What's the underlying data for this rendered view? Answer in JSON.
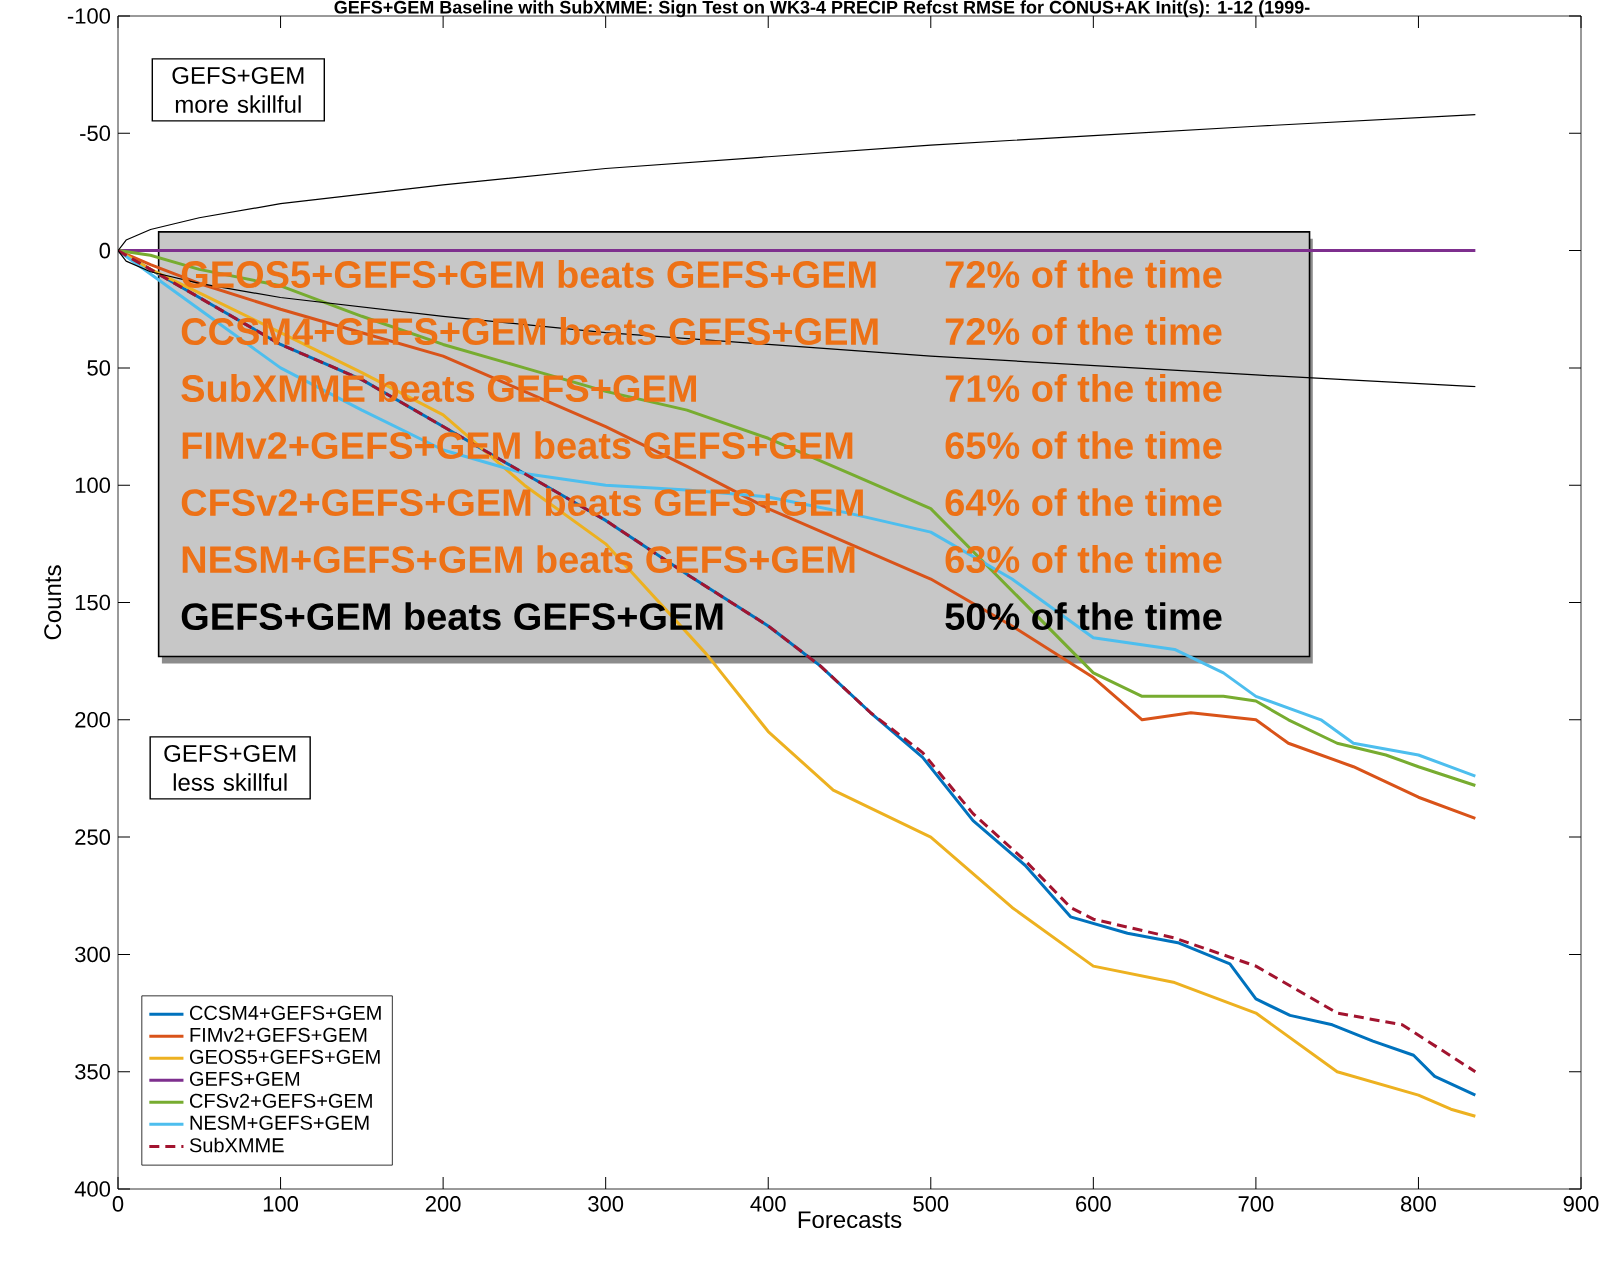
{
  "chart_data": {
    "type": "line",
    "title": "GEFS+GEM Baseline with SubXMME: Sign Test on WK3-4 PRECIP Refcst RMSE for CONUS+AK Init(s): 1-12 (1999-",
    "xlabel": "Forecasts",
    "ylabel": "Counts",
    "xlim": [
      0,
      900
    ],
    "xticks": [
      0,
      100,
      200,
      300,
      400,
      500,
      600,
      700,
      800,
      900
    ],
    "ylim": [
      400,
      -100
    ],
    "yticks": [
      -100,
      -50,
      0,
      50,
      100,
      150,
      200,
      250,
      300,
      350,
      400
    ],
    "grid": false,
    "legend": "bottom left",
    "series": [
      {
        "name": "CCSM4+GEFS+GEM",
        "color": "#0072bd",
        "x": [
          0,
          20,
          50,
          100,
          150,
          200,
          250,
          300,
          350,
          400,
          432,
          463,
          495,
          526,
          558,
          586,
          621,
          652,
          684,
          700,
          721,
          747,
          772,
          797,
          810,
          835
        ],
        "values": [
          0,
          8,
          20,
          40,
          55,
          75,
          95,
          115,
          138,
          160,
          177,
          197,
          216,
          243,
          262,
          284,
          291,
          295,
          304,
          319,
          326,
          330,
          337,
          343,
          352,
          360
        ]
      },
      {
        "name": "FIMv2+GEFS+GEM",
        "color": "#d95319",
        "x": [
          0,
          20,
          50,
          100,
          150,
          200,
          250,
          300,
          350,
          400,
          450,
          500,
          550,
          600,
          630,
          660,
          700,
          720,
          760,
          800,
          835
        ],
        "values": [
          0,
          6,
          14,
          25,
          35,
          45,
          60,
          75,
          92,
          110,
          125,
          140,
          160,
          182,
          200,
          197,
          200,
          210,
          220,
          233,
          242
        ]
      },
      {
        "name": "GEOS5+GEFS+GEM",
        "color": "#edb120",
        "x": [
          0,
          20,
          50,
          100,
          150,
          200,
          250,
          300,
          362,
          400,
          440,
          500,
          550,
          600,
          650,
          700,
          750,
          800,
          820,
          835
        ],
        "values": [
          0,
          8,
          18,
          35,
          52,
          70,
          100,
          125,
          172,
          205,
          230,
          250,
          280,
          305,
          312,
          325,
          350,
          360,
          366,
          369
        ]
      },
      {
        "name": "GEFS+GEM",
        "color": "#7e2f8e",
        "x": [
          0,
          835
        ],
        "values": [
          0,
          0
        ]
      },
      {
        "name": "CFSv2+GEFS+GEM",
        "color": "#77ac30",
        "x": [
          0,
          20,
          50,
          100,
          150,
          200,
          250,
          300,
          350,
          400,
          450,
          500,
          550,
          600,
          630,
          680,
          700,
          720,
          750,
          780,
          800,
          835
        ],
        "values": [
          0,
          2,
          8,
          15,
          28,
          40,
          50,
          60,
          68,
          80,
          95,
          110,
          145,
          180,
          190,
          190,
          192,
          200,
          210,
          215,
          220,
          228
        ]
      },
      {
        "name": "NESM+GEFS+GEM",
        "color": "#4dbeee",
        "x": [
          0,
          20,
          50,
          100,
          150,
          200,
          250,
          300,
          350,
          400,
          450,
          500,
          550,
          600,
          650,
          680,
          700,
          740,
          760,
          800,
          835
        ],
        "values": [
          0,
          10,
          25,
          50,
          68,
          85,
          95,
          100,
          102,
          105,
          112,
          120,
          140,
          165,
          170,
          180,
          190,
          200,
          210,
          215,
          224
        ]
      },
      {
        "name": "SubXMME",
        "color": "#a2142f",
        "line_style": "dashed",
        "x": [
          0,
          20,
          50,
          100,
          150,
          200,
          250,
          300,
          350,
          400,
          432,
          463,
          495,
          526,
          558,
          586,
          600,
          650,
          700,
          750,
          790,
          835
        ],
        "values": [
          0,
          8,
          20,
          40,
          55,
          75,
          95,
          115,
          138,
          160,
          177,
          197,
          214,
          240,
          260,
          280,
          285,
          293,
          305,
          325,
          330,
          350
        ]
      },
      {
        "color": "#000000",
        "x": [
          0,
          5,
          20,
          50,
          100,
          200,
          300,
          400,
          500,
          600,
          700,
          835
        ],
        "values": [
          0,
          -4.5,
          -9,
          -14,
          -20,
          -28,
          -35,
          -40,
          -45,
          -49,
          -53,
          -58
        ]
      },
      {
        "color": "#000000",
        "x": [
          0,
          5,
          20,
          50,
          100,
          200,
          300,
          400,
          500,
          600,
          700,
          835
        ],
        "values": [
          0,
          4.5,
          9,
          14,
          20,
          28,
          35,
          40,
          45,
          49,
          53,
          58
        ]
      }
    ],
    "annotations": [
      "GEOS5+GEFS+GEM beats GEFS+GEM",
      "72% of the time",
      "CCSM4+GEFS+GEM beats GEFS+GEM",
      "72% of the time",
      "SubXMME beats GEFS+GEM",
      "71% of the time",
      "FIMv2+GEFS+GEM beats GEFS+GEM",
      "65% of the time",
      "CFSv2+GEFS+GEM beats GEFS+GEM",
      "64% of the time",
      "NESM+GEFS+GEM beats GEFS+GEM",
      "63% of the time",
      "GEFS+GEM beats GEFS+GEM",
      "50% of the time",
      "GEFS+GEM more skillful",
      "GEFS+GEM less skillful"
    ]
  }
}
